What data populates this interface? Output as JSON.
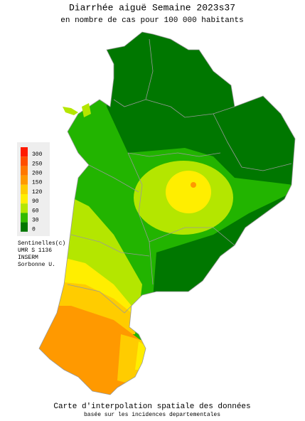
{
  "title": "Diarrhée aiguë Semaine 2023s37",
  "subtitle": "en nombre de cas pour 100 000 habitants",
  "legend": {
    "items": [
      {
        "value": 300,
        "color": "#ff1a00"
      },
      {
        "value": 250,
        "color": "#ff4d00"
      },
      {
        "value": 200,
        "color": "#ff7700"
      },
      {
        "value": 150,
        "color": "#ff9900"
      },
      {
        "value": 120,
        "color": "#ffcc00"
      },
      {
        "value": 90,
        "color": "#ffee00"
      },
      {
        "value": 60,
        "color": "#b4e600"
      },
      {
        "value": 30,
        "color": "#33bb00"
      },
      {
        "value": 0,
        "color": "#007700"
      }
    ]
  },
  "credits": [
    "Sentinelles(c)",
    "UMR S 1136",
    "INSERM",
    "Sorbonne U."
  ],
  "footer": {
    "title": "Carte d'interpolation spatiale des données",
    "subtitle": "basée sur les incidences departementales"
  }
}
